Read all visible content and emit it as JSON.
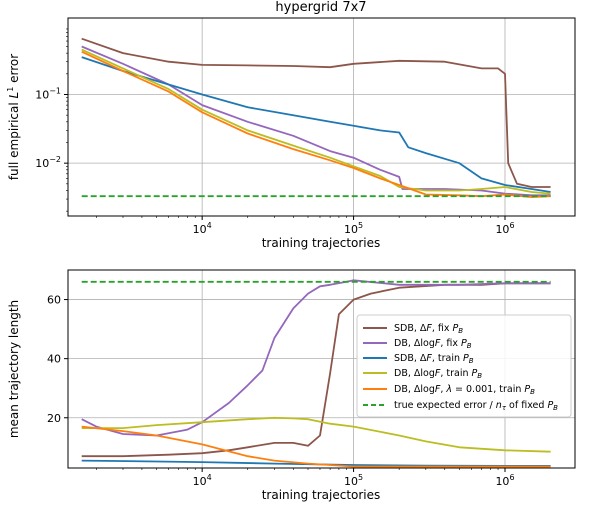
{
  "chart_data": [
    {
      "type": "line",
      "title": "hypergrid 7x7",
      "xlabel": "training trajectories",
      "ylabel": "full empirical L¹ error",
      "xscale": "log",
      "yscale": "log",
      "xlim": [
        1300,
        2900000
      ],
      "ylim": [
        0.0017,
        1.3
      ],
      "grid": true,
      "x_ticks": [
        {
          "value": 10000,
          "base": "10",
          "exp": "4"
        },
        {
          "value": 100000,
          "base": "10",
          "exp": "5"
        },
        {
          "value": 1000000,
          "base": "10",
          "exp": "6"
        }
      ],
      "y_ticks": [
        {
          "value": 0.1,
          "base": "10",
          "exp": "−1"
        },
        {
          "value": 0.01,
          "base": "10",
          "exp": "−2"
        }
      ],
      "series": [
        {
          "color": "#8c564b",
          "x": [
            1600,
            3000,
            6000,
            10000,
            20000,
            40000,
            70000,
            100000,
            200000,
            400000,
            700000,
            900000,
            1000000,
            1050000,
            1200000,
            1500000,
            2000000
          ],
          "y": [
            0.65,
            0.4,
            0.3,
            0.27,
            0.265,
            0.26,
            0.25,
            0.28,
            0.31,
            0.3,
            0.24,
            0.24,
            0.2,
            0.01,
            0.005,
            0.0045,
            0.0045
          ]
        },
        {
          "color": "#9467bd",
          "x": [
            1600,
            3000,
            6000,
            10000,
            20000,
            40000,
            70000,
            100000,
            150000,
            200000,
            210000,
            400000,
            700000,
            1000000,
            1500000,
            2000000
          ],
          "y": [
            0.5,
            0.28,
            0.14,
            0.07,
            0.04,
            0.025,
            0.015,
            0.012,
            0.008,
            0.0063,
            0.0042,
            0.0042,
            0.004,
            0.0036,
            0.0034,
            0.0034
          ]
        },
        {
          "color": "#1f77b4",
          "x": [
            1600,
            3000,
            6000,
            10000,
            20000,
            40000,
            70000,
            100000,
            150000,
            200000,
            230000,
            300000,
            500000,
            700000,
            1000000,
            1500000,
            2000000
          ],
          "y": [
            0.35,
            0.22,
            0.14,
            0.1,
            0.065,
            0.05,
            0.04,
            0.035,
            0.03,
            0.028,
            0.017,
            0.014,
            0.01,
            0.006,
            0.0048,
            0.0042,
            0.0038
          ]
        },
        {
          "color": "#bcbd22",
          "x": [
            1600,
            3000,
            6000,
            10000,
            20000,
            40000,
            70000,
            100000,
            150000,
            200000,
            300000,
            500000,
            700000,
            1000000,
            1500000,
            2000000
          ],
          "y": [
            0.45,
            0.24,
            0.12,
            0.06,
            0.03,
            0.018,
            0.012,
            0.009,
            0.0065,
            0.0045,
            0.004,
            0.004,
            0.0042,
            0.0045,
            0.0038,
            0.0036
          ]
        },
        {
          "color": "#ff7f0e",
          "x": [
            1600,
            3000,
            6000,
            10000,
            20000,
            40000,
            70000,
            100000,
            150000,
            200000,
            300000,
            500000,
            700000,
            1000000,
            1500000,
            2000000
          ],
          "y": [
            0.42,
            0.22,
            0.11,
            0.055,
            0.027,
            0.016,
            0.011,
            0.0085,
            0.006,
            0.0048,
            0.0035,
            0.0034,
            0.0033,
            0.0035,
            0.0032,
            0.0033
          ]
        },
        {
          "color": "#2ca02c",
          "dashed": true,
          "x": [
            1600,
            2000000
          ],
          "y": [
            0.0033,
            0.0033
          ]
        }
      ]
    },
    {
      "type": "line",
      "title": "",
      "xlabel": "training trajectories",
      "ylabel": "mean trajectory length",
      "xscale": "log",
      "xlim": [
        1300,
        2900000
      ],
      "ylim": [
        3,
        70
      ],
      "grid": true,
      "x_ticks": [
        {
          "value": 10000,
          "base": "10",
          "exp": "4"
        },
        {
          "value": 100000,
          "base": "10",
          "exp": "5"
        },
        {
          "value": 1000000,
          "base": "10",
          "exp": "6"
        }
      ],
      "y_ticks": [
        {
          "value": 20,
          "label": "20"
        },
        {
          "value": 40,
          "label": "40"
        },
        {
          "value": 60,
          "label": "60"
        }
      ],
      "legend_position": "center-right",
      "series": [
        {
          "name": "SDB, ΔF, fix P_B",
          "color": "#8c564b",
          "x": [
            1600,
            3000,
            6000,
            10000,
            15000,
            20000,
            30000,
            40000,
            50000,
            60000,
            70000,
            80000,
            100000,
            130000,
            200000,
            400000,
            700000,
            1000000,
            2000000
          ],
          "y": [
            7,
            7,
            7.5,
            8,
            9,
            10,
            11.5,
            11.5,
            10.5,
            14,
            35,
            55,
            60,
            62,
            64,
            65,
            65,
            65.5,
            65.5
          ]
        },
        {
          "name": "DB, ΔlogF, fix P_B",
          "color": "#9467bd",
          "x": [
            1600,
            2000,
            3000,
            5000,
            8000,
            10000,
            15000,
            20000,
            25000,
            30000,
            40000,
            50000,
            60000,
            70000,
            90000,
            100000,
            200000,
            500000,
            1000000,
            2000000
          ],
          "y": [
            19.5,
            17,
            14.5,
            14,
            16,
            18.5,
            25,
            31,
            36,
            47,
            57,
            62,
            64.5,
            65,
            66,
            66.5,
            65,
            65,
            65.5,
            65.5
          ]
        },
        {
          "name": "SDB, ΔF, train P_B",
          "color": "#1f77b4",
          "x": [
            1600,
            5000,
            10000,
            30000,
            100000,
            300000,
            1000000,
            2000000
          ],
          "y": [
            5.5,
            5.2,
            5,
            4.5,
            4,
            3.8,
            3.7,
            3.7
          ]
        },
        {
          "name": "DB, ΔlogF, train P_B",
          "color": "#bcbd22",
          "x": [
            1600,
            3000,
            5000,
            10000,
            20000,
            30000,
            40000,
            50000,
            70000,
            100000,
            200000,
            300000,
            500000,
            1000000,
            2000000
          ],
          "y": [
            16.5,
            16.5,
            17.5,
            18.5,
            19.5,
            20,
            19.8,
            19.5,
            18,
            17,
            14,
            12,
            10,
            9,
            8.5
          ]
        },
        {
          "name": "DB, ΔlogF, λ = 0.001, train P_B",
          "color": "#ff7f0e",
          "x": [
            1600,
            3000,
            5000,
            10000,
            20000,
            30000,
            50000,
            70000,
            100000,
            200000,
            500000,
            1000000,
            2000000
          ],
          "y": [
            17,
            15.5,
            14,
            11,
            7,
            5.5,
            4.5,
            4,
            3.5,
            3.5,
            3.5,
            3.5,
            3.5
          ]
        },
        {
          "name": "true expected error / n_τ of fixed P_B",
          "color": "#2ca02c",
          "dashed": true,
          "x": [
            1600,
            2000000
          ],
          "y": [
            66,
            66
          ]
        }
      ]
    }
  ]
}
